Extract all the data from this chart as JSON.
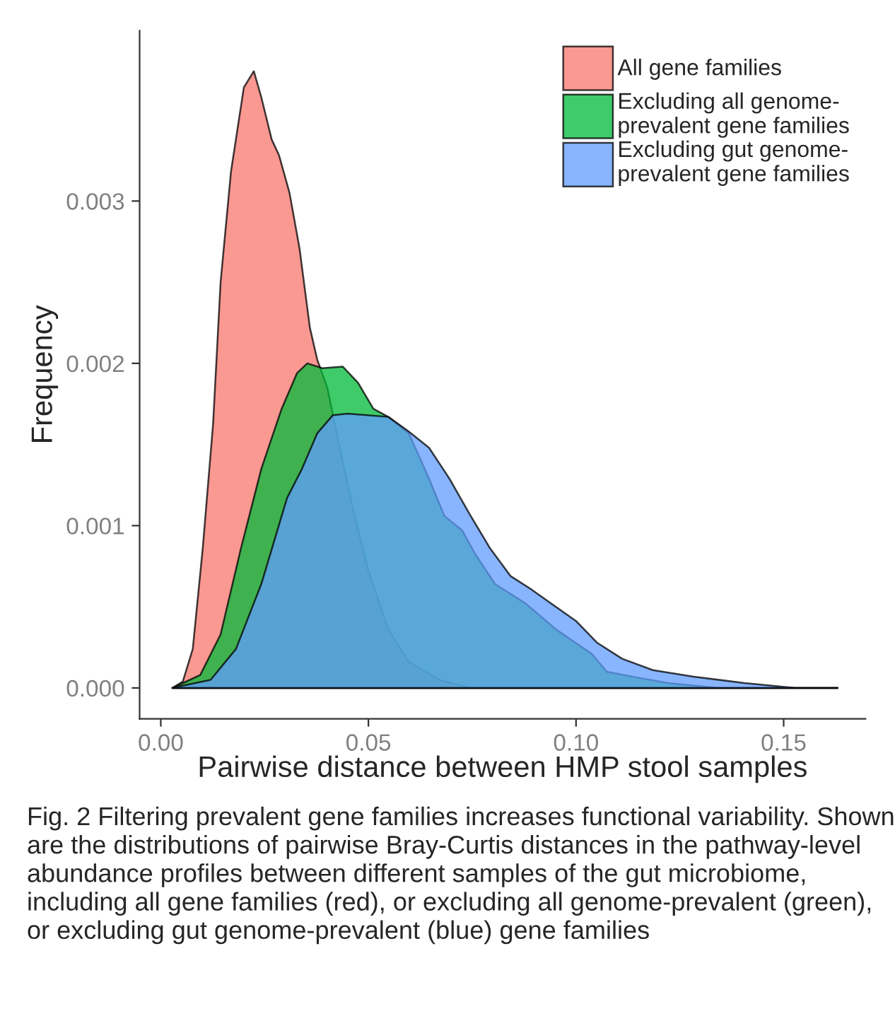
{
  "chart_data": {
    "type": "area",
    "xlabel": "Pairwise distance between HMP stool samples",
    "ylabel": "Frequency",
    "xlim": [
      -0.0051,
      0.1697
    ],
    "ylim": [
      -0.00019,
      0.00405
    ],
    "xticks": [
      {
        "value": 0,
        "label": "0.00"
      },
      {
        "value": 0.05,
        "label": "0.05"
      },
      {
        "value": 0.1,
        "label": "0.10"
      },
      {
        "value": 0.15,
        "label": "0.15"
      }
    ],
    "yticks": [
      {
        "value": 0,
        "label": "0.000"
      },
      {
        "value": 0.001,
        "label": "0.001"
      },
      {
        "value": 0.002,
        "label": "0.002"
      },
      {
        "value": 0.003,
        "label": "0.003"
      }
    ],
    "grid": false,
    "legend": "top right",
    "series": [
      {
        "name": "All gene families",
        "color": "#f8766d",
        "x": [
          0.0028,
          0.0053,
          0.0077,
          0.0101,
          0.0126,
          0.0144,
          0.0169,
          0.02,
          0.0224,
          0.0242,
          0.0267,
          0.0285,
          0.031,
          0.0334,
          0.0359,
          0.0377,
          0.0401,
          0.0426,
          0.0463,
          0.0499,
          0.0548,
          0.0597,
          0.0671,
          0.0744,
          0.163
        ],
        "values": [
          0,
          4e-05,
          0.00024,
          0.00086,
          0.00163,
          0.0025,
          0.00318,
          0.0037,
          0.0038,
          0.00364,
          0.00338,
          0.00328,
          0.00305,
          0.00271,
          0.00222,
          0.00202,
          0.00185,
          0.00154,
          0.0011,
          0.00073,
          0.00036,
          0.00016,
          5e-05,
          0,
          0
        ]
      },
      {
        "name": "Excluding all genome-\nprevalent gene families",
        "color": "#00ba38",
        "x": [
          0.0028,
          0.0095,
          0.0144,
          0.0193,
          0.0242,
          0.0291,
          0.0328,
          0.0353,
          0.0389,
          0.0438,
          0.0475,
          0.0512,
          0.0548,
          0.0597,
          0.0646,
          0.0683,
          0.0726,
          0.0756,
          0.0805,
          0.0879,
          0.0952,
          0.1038,
          0.1074,
          0.1136,
          0.1221,
          0.1344,
          0.163
        ],
        "values": [
          0,
          8e-05,
          0.00033,
          0.00086,
          0.00135,
          0.00172,
          0.00194,
          0.002,
          0.00197,
          0.00198,
          0.00188,
          0.00172,
          0.00167,
          0.00157,
          0.00129,
          0.00106,
          0.00097,
          0.00083,
          0.00064,
          0.00052,
          0.00036,
          0.00021,
          0.0001,
          7e-05,
          3e-05,
          0,
          0
        ]
      },
      {
        "name": "Excluding gut genome-\nprevalent gene families",
        "color": "#619cff",
        "x": [
          0.0028,
          0.012,
          0.0181,
          0.0242,
          0.0304,
          0.034,
          0.0377,
          0.0414,
          0.045,
          0.0499,
          0.0548,
          0.0597,
          0.0646,
          0.0695,
          0.0744,
          0.0793,
          0.0842,
          0.0891,
          0.094,
          0.1001,
          0.105,
          0.1111,
          0.1185,
          0.1283,
          0.1405,
          0.1528,
          0.163
        ],
        "values": [
          0,
          5e-05,
          0.00024,
          0.00064,
          0.00117,
          0.00135,
          0.00157,
          0.00168,
          0.00169,
          0.00168,
          0.00167,
          0.00158,
          0.00148,
          0.00129,
          0.00107,
          0.00086,
          0.00069,
          0.00061,
          0.00052,
          0.00041,
          0.00028,
          0.00018,
          0.00011,
          7e-05,
          3e-05,
          0,
          0
        ]
      }
    ],
    "annotations": [
      "Fig. 2 Filtering prevalent gene families increases functional variability. Shown are the distributions of pairwise Bray-Curtis distances in the pathway-level abundance profiles between different samples of the gut microbiome, including all gene families (red), or excluding all genome-prevalent (green), or excluding gut genome-prevalent (blue) gene families"
    ]
  }
}
